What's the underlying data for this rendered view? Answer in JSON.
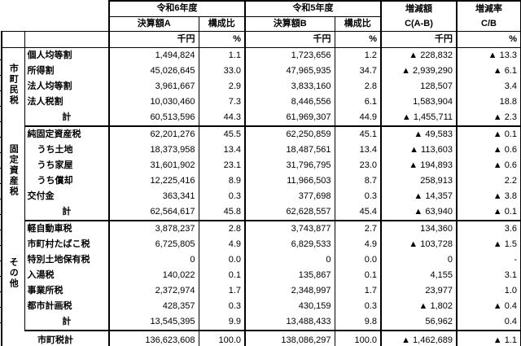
{
  "header": {
    "year_a": "令和6年度",
    "year_b": "令和5年度",
    "settlement_a": "決算額A",
    "ratio_a": "構成比",
    "settlement_b": "決算額B",
    "ratio_b": "構成比",
    "diff_title": "増減額",
    "diff_formula": "C(A-B)",
    "rate_title": "増減率",
    "rate_formula": "C/B",
    "unit_amount": "千円",
    "unit_percent": "%"
  },
  "negative_marker": "▲",
  "colors": {
    "border": "#000000",
    "text": "#000000",
    "background": "#ffffff"
  },
  "sections": [
    {
      "group_label": "市町民税",
      "rows": [
        {
          "label": "個人均等割",
          "a_amount": "1,494,824",
          "a_ratio": "1.1",
          "b_amount": "1,723,656",
          "b_ratio": "1.2",
          "diff": "▲ 228,832",
          "rate": "▲ 13.3"
        },
        {
          "label": "所得割",
          "a_amount": "45,026,645",
          "a_ratio": "33.0",
          "b_amount": "47,965,935",
          "b_ratio": "34.7",
          "diff": "▲ 2,939,290",
          "rate": "▲ 6.1"
        },
        {
          "label": "法人均等割",
          "a_amount": "3,961,667",
          "a_ratio": "2.9",
          "b_amount": "3,833,160",
          "b_ratio": "2.8",
          "diff": "128,507",
          "rate": "3.4"
        },
        {
          "label": "法人税割",
          "a_amount": "10,030,460",
          "a_ratio": "7.3",
          "b_amount": "8,446,556",
          "b_ratio": "6.1",
          "diff": "1,583,904",
          "rate": "18.8"
        },
        {
          "label": "計",
          "subtotal": true,
          "a_amount": "60,513,596",
          "a_ratio": "44.3",
          "b_amount": "61,969,307",
          "b_ratio": "44.9",
          "diff": "▲ 1,455,711",
          "rate": "▲ 2.3"
        }
      ]
    },
    {
      "group_label": "固定資産税",
      "rows": [
        {
          "label": "純固定資産税",
          "a_amount": "62,201,276",
          "a_ratio": "45.5",
          "b_amount": "62,250,859",
          "b_ratio": "45.1",
          "diff": "▲ 49,583",
          "rate": "▲ 0.1"
        },
        {
          "label": "うち土地",
          "indent": true,
          "a_amount": "18,373,958",
          "a_ratio": "13.4",
          "b_amount": "18,487,561",
          "b_ratio": "13.4",
          "diff": "▲ 113,603",
          "rate": "▲ 0.6"
        },
        {
          "label": "うち家屋",
          "indent": true,
          "a_amount": "31,601,902",
          "a_ratio": "23.1",
          "b_amount": "31,796,795",
          "b_ratio": "23.0",
          "diff": "▲ 194,893",
          "rate": "▲ 0.6"
        },
        {
          "label": "うち償却",
          "indent": true,
          "a_amount": "12,225,416",
          "a_ratio": "8.9",
          "b_amount": "11,966,503",
          "b_ratio": "8.7",
          "diff": "258,913",
          "rate": "2.2"
        },
        {
          "label": "交付金",
          "a_amount": "363,341",
          "a_ratio": "0.3",
          "b_amount": "377,698",
          "b_ratio": "0.3",
          "diff": "▲ 14,357",
          "rate": "▲ 3.8"
        },
        {
          "label": "計",
          "subtotal": true,
          "a_amount": "62,564,617",
          "a_ratio": "45.8",
          "b_amount": "62,628,557",
          "b_ratio": "45.4",
          "diff": "▲ 63,940",
          "rate": "▲ 0.1"
        }
      ]
    },
    {
      "group_label": "その他",
      "rows": [
        {
          "label": "軽自動車税",
          "a_amount": "3,878,237",
          "a_ratio": "2.8",
          "b_amount": "3,743,877",
          "b_ratio": "2.7",
          "diff": "134,360",
          "rate": "3.6"
        },
        {
          "label": "市町村たばこ税",
          "a_amount": "6,725,805",
          "a_ratio": "4.9",
          "b_amount": "6,829,533",
          "b_ratio": "4.9",
          "diff": "▲ 103,728",
          "rate": "▲ 1.5"
        },
        {
          "label": "特別土地保有税",
          "a_amount": "0",
          "a_ratio": "0.0",
          "b_amount": "0",
          "b_ratio": "0.0",
          "diff": "0",
          "rate": "-"
        },
        {
          "label": "入湯税",
          "a_amount": "140,022",
          "a_ratio": "0.1",
          "b_amount": "135,867",
          "b_ratio": "0.1",
          "diff": "4,155",
          "rate": "3.1"
        },
        {
          "label": "事業所税",
          "a_amount": "2,372,974",
          "a_ratio": "1.7",
          "b_amount": "2,348,997",
          "b_ratio": "1.7",
          "diff": "23,977",
          "rate": "1.0"
        },
        {
          "label": "都市計画税",
          "a_amount": "428,357",
          "a_ratio": "0.3",
          "b_amount": "430,159",
          "b_ratio": "0.3",
          "diff": "▲ 1,802",
          "rate": "▲ 0.4"
        },
        {
          "label": "計",
          "subtotal": true,
          "a_amount": "13,545,395",
          "a_ratio": "9.9",
          "b_amount": "13,488,433",
          "b_ratio": "9.8",
          "diff": "56,962",
          "rate": "0.4"
        }
      ]
    }
  ],
  "grand_total": {
    "label": "市町税計",
    "a_amount": "136,623,608",
    "a_ratio": "100.0",
    "b_amount": "138,086,297",
    "b_ratio": "100.0",
    "diff": "▲ 1,462,689",
    "rate": "▲ 1.1"
  }
}
